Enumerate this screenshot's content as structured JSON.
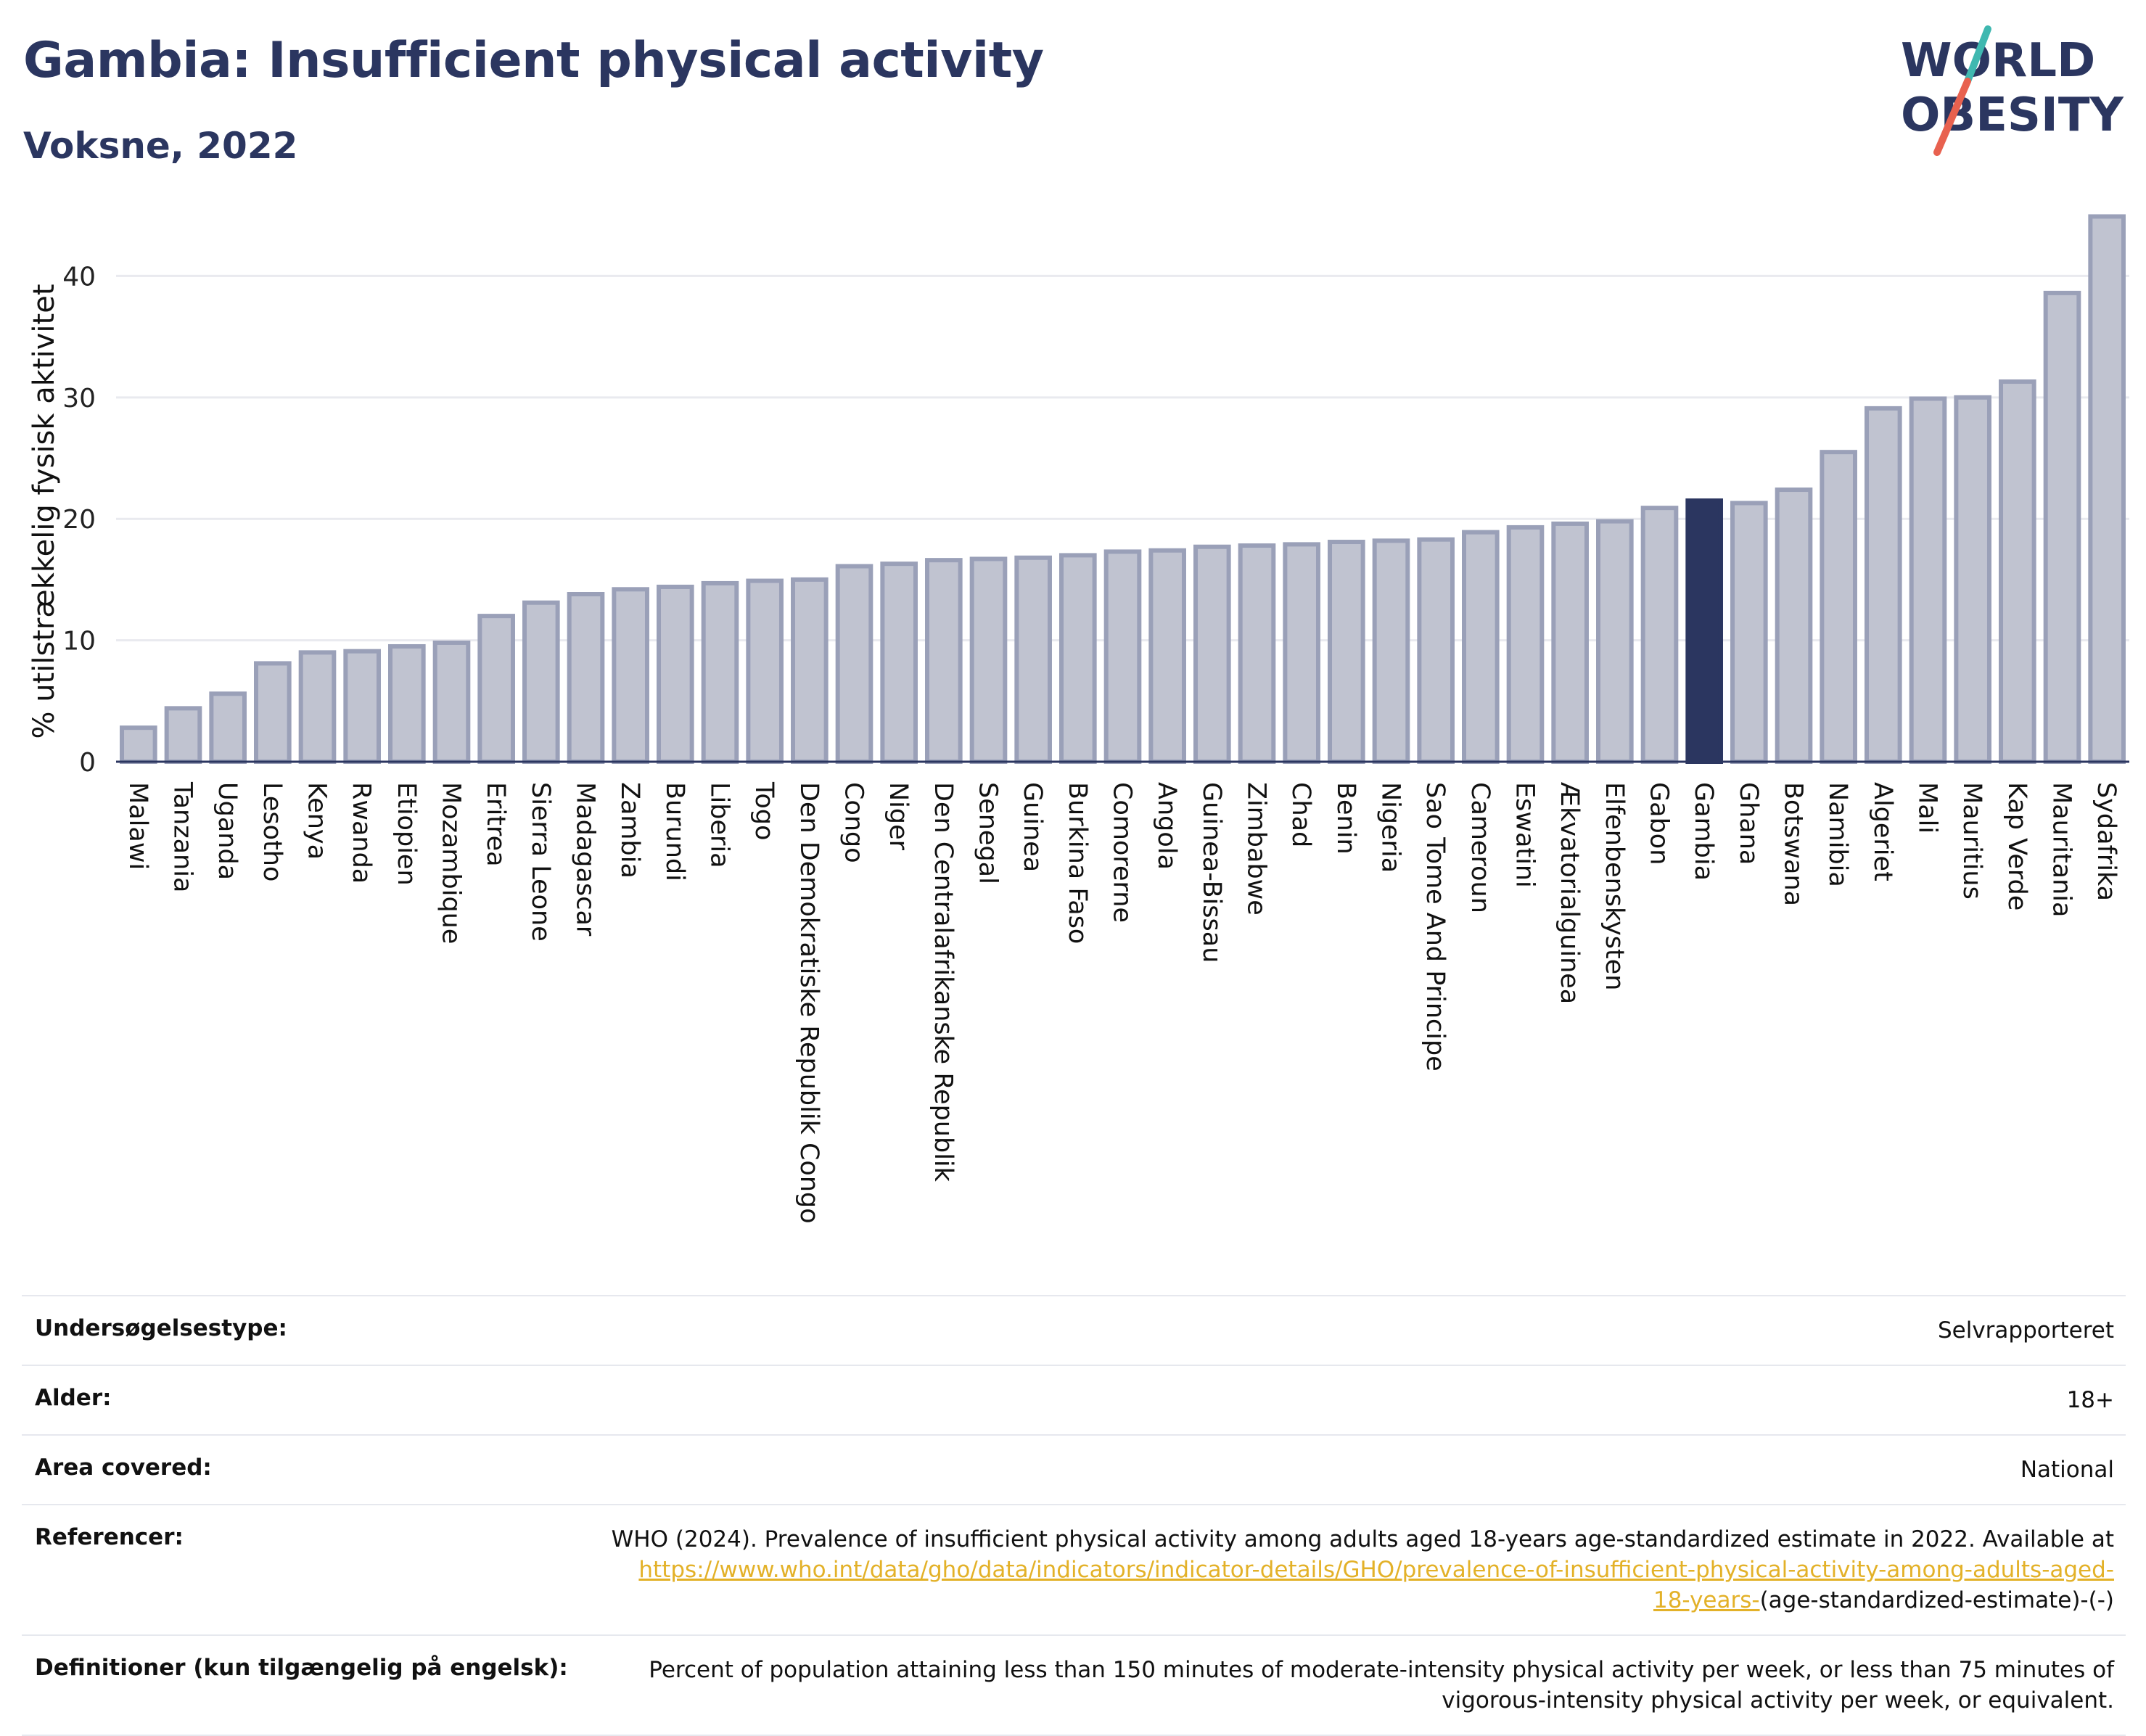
{
  "header": {
    "title": "Gambia: Insufficient physical activity",
    "subtitle": "Voksne, 2022"
  },
  "logo": {
    "line1": "WORLD",
    "line2": "OBESITY",
    "colors": {
      "text": "#2b3660",
      "slash_top": "#3fb8b0",
      "slash_bottom": "#e8614f"
    }
  },
  "chart_data": {
    "type": "bar",
    "title": "",
    "xlabel": "",
    "ylabel": "% utilstrækkelig fysisk aktivitet",
    "ylim": [
      0,
      46
    ],
    "yticks": [
      0,
      10,
      20,
      30,
      40
    ],
    "grid": true,
    "highlight": "Gambia",
    "colors": {
      "bar": "#c0c3d0",
      "bar_stroke": "#9aa0b8",
      "highlight": "#2b3660",
      "grid": "#e9eaef"
    },
    "categories": [
      "Malawi",
      "Tanzania",
      "Uganda",
      "Lesotho",
      "Kenya",
      "Rwanda",
      "Etiopien",
      "Mozambique",
      "Eritrea",
      "Sierra Leone",
      "Madagascar",
      "Zambia",
      "Burundi",
      "Liberia",
      "Togo",
      "Den Demokratiske Republik Congo",
      "Congo",
      "Niger",
      "Den Centralafrikanske Republik",
      "Senegal",
      "Guinea",
      "Burkina Faso",
      "Comorerne",
      "Angola",
      "Guinea-Bissau",
      "Zimbabwe",
      "Chad",
      "Benin",
      "Nigeria",
      "Sao Tome And Principe",
      "Cameroun",
      "Eswatini",
      "Ækvatorialguinea",
      "Elfenbenskysten",
      "Gabon",
      "Gambia",
      "Ghana",
      "Botswana",
      "Namibia",
      "Algeriet",
      "Mali",
      "Mauritius",
      "Kap Verde",
      "Mauritania",
      "Sydafrika"
    ],
    "values": [
      2.8,
      4.4,
      5.6,
      8.1,
      9.0,
      9.1,
      9.5,
      9.8,
      12.0,
      13.1,
      13.8,
      14.2,
      14.4,
      14.7,
      14.9,
      15.0,
      16.1,
      16.3,
      16.6,
      16.7,
      16.8,
      17.0,
      17.3,
      17.4,
      17.7,
      17.8,
      17.9,
      18.1,
      18.2,
      18.3,
      18.9,
      19.3,
      19.6,
      19.8,
      20.9,
      21.5,
      21.3,
      22.4,
      25.5,
      29.1,
      29.9,
      30.0,
      31.3,
      38.6,
      44.9
    ]
  },
  "info": {
    "rows": [
      {
        "key": "Undersøgelsestype:",
        "value": "Selvrapporteret"
      },
      {
        "key": "Alder:",
        "value": "18+"
      },
      {
        "key": "Area covered:",
        "value": "National"
      }
    ],
    "references": {
      "key": "Referencer:",
      "text": "WHO (2024). Prevalence of insufficient physical activity among adults aged 18-years age-standardized estimate in 2022. Available at",
      "link": "https://www.who.int/data/gho/data/indicators/indicator-details/GHO/prevalence-of-insufficient-physical-activity-among-adults-aged-18-years-",
      "tail": "(age-standardized-estimate)-(-)"
    },
    "definitions": {
      "key": "Definitioner (kun tilgængelig på engelsk):",
      "value": "Percent of population attaining less than 150 minutes of moderate-intensity physical activity per week, or less than 75 minutes of vigorous-intensity physical activity per week, or equivalent."
    }
  }
}
